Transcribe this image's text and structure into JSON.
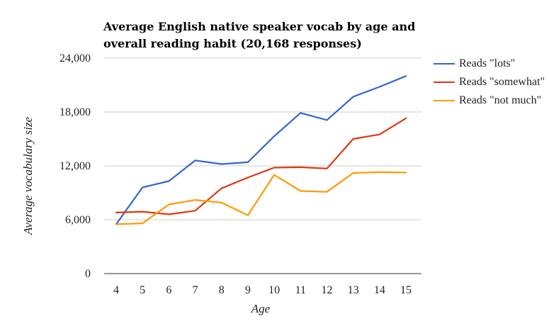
{
  "chart_data": {
    "type": "line",
    "title": "Average English native speaker vocab by age and overall reading habit (20,168 responses)",
    "xlabel": "Age",
    "ylabel": "Average vocabulary size",
    "x": [
      4,
      5,
      6,
      7,
      8,
      9,
      10,
      11,
      12,
      13,
      14,
      15
    ],
    "ylim": [
      0,
      24000
    ],
    "yticks": [
      0,
      6000,
      12000,
      18000,
      24000
    ],
    "ytick_labels": [
      "0",
      "6,000",
      "12,000",
      "18,000",
      "24,000"
    ],
    "grid": true,
    "legend_position": "right",
    "series": [
      {
        "name": "Reads \"lots\"",
        "color": "#3366cc",
        "values": [
          5500,
          9600,
          10300,
          12600,
          12200,
          12400,
          15300,
          17900,
          17100,
          19700,
          20800,
          22000
        ]
      },
      {
        "name": "Reads \"somewhat\"",
        "color": "#dc3912",
        "values": [
          6800,
          6900,
          6600,
          7000,
          9500,
          10700,
          11800,
          11850,
          11700,
          15000,
          15500,
          17300
        ]
      },
      {
        "name": "Reads \"not much\"",
        "color": "#ff9900",
        "values": [
          5500,
          5600,
          7700,
          8200,
          7900,
          6500,
          11000,
          9200,
          9100,
          11200,
          11300,
          11250
        ]
      }
    ]
  }
}
